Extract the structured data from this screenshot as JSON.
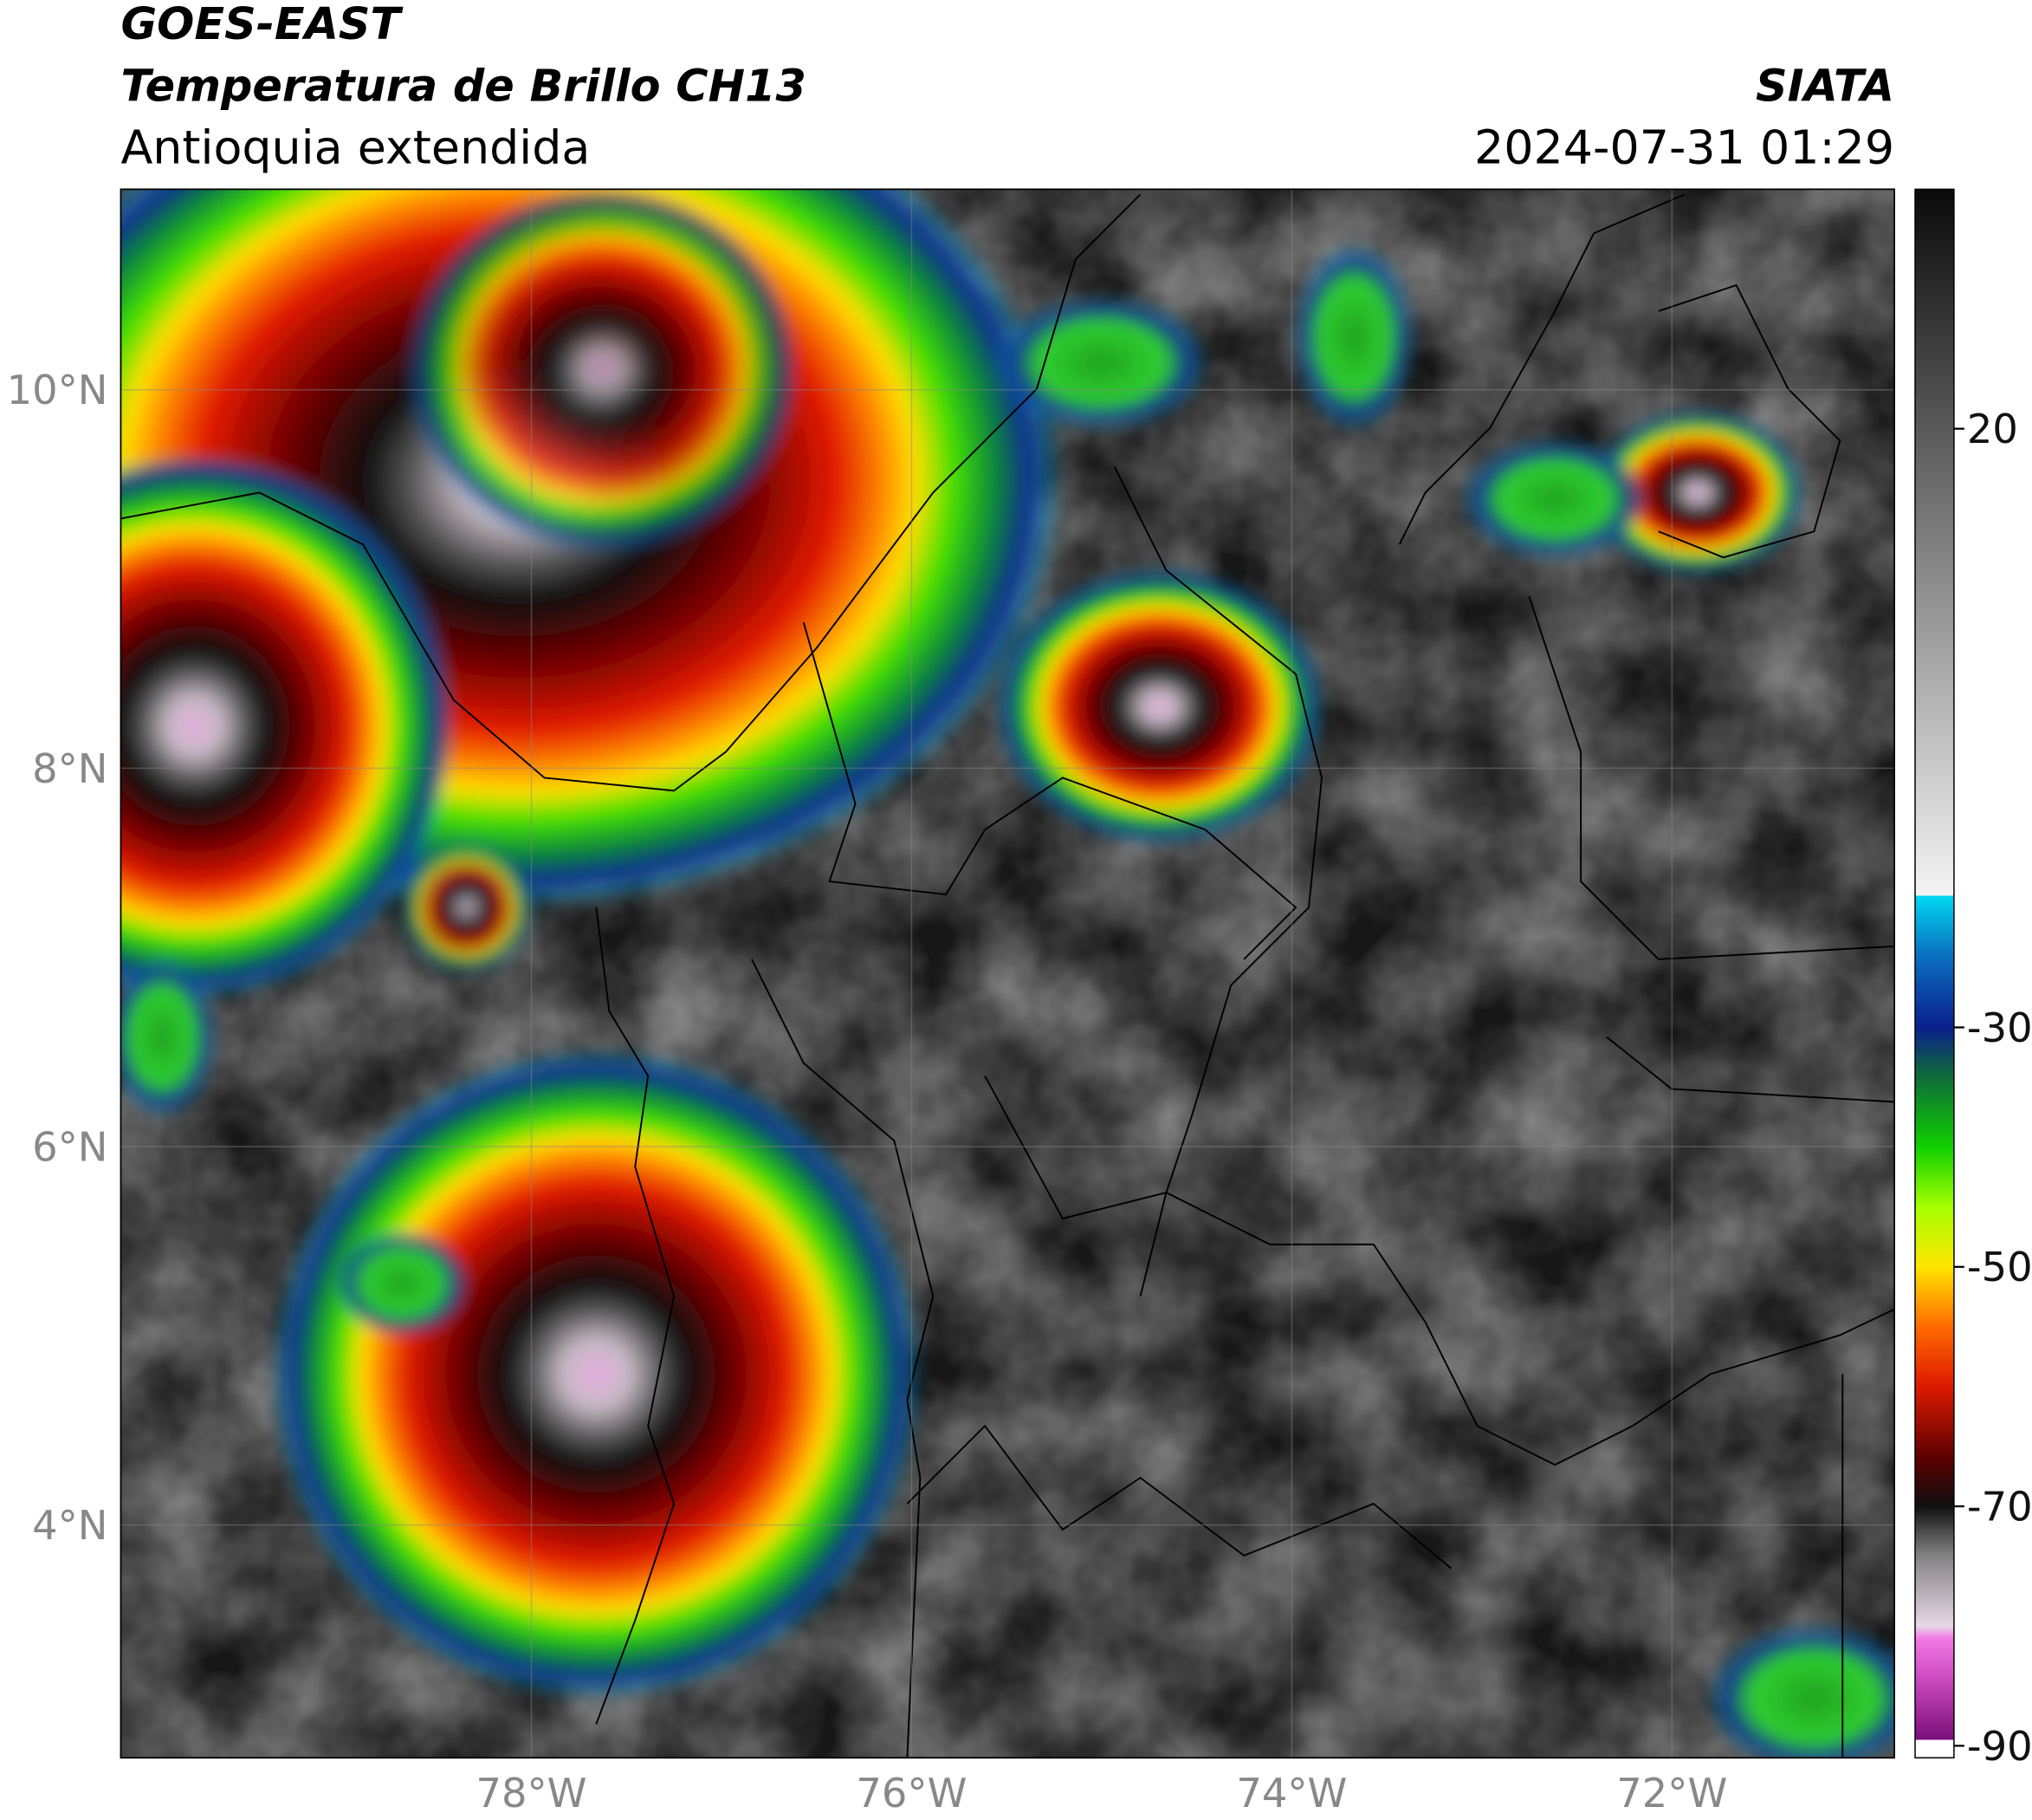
{
  "header": {
    "title": "GOES-EAST",
    "subtitle": "Temperatura de Brillo CH13",
    "region": "Antioquia extendida",
    "source": "SIATA",
    "datetime": "2024-07-31 01:29"
  },
  "map": {
    "lonlim": [
      -80.16,
      -70.83
    ],
    "latlim": [
      2.77,
      11.06
    ],
    "lonticks": [
      {
        "value": -78,
        "label": "78°W"
      },
      {
        "value": -76,
        "label": "76°W"
      },
      {
        "value": -74,
        "label": "74°W"
      },
      {
        "value": -72,
        "label": "72°W"
      }
    ],
    "latticks": [
      {
        "value": 10,
        "label": "10°N"
      },
      {
        "value": 8,
        "label": "8°N"
      },
      {
        "value": 6,
        "label": "6°N"
      },
      {
        "value": 4,
        "label": "4°N"
      }
    ],
    "grid": true
  },
  "colorbar": {
    "lim": [
      -91,
      40
    ],
    "ticks": [
      20,
      -30,
      -50,
      -70,
      -90
    ],
    "colormap": [
      [
        -91,
        "#ffffff"
      ],
      [
        -89.5,
        "#ffffff"
      ],
      [
        -89.5,
        "#7a0f7a"
      ],
      [
        -84,
        "#d24fc4"
      ],
      [
        -81,
        "#f07ae6"
      ],
      [
        -80,
        "#e8d8e6"
      ],
      [
        -74,
        "#808080"
      ],
      [
        -70,
        "#101010"
      ],
      [
        -66,
        "#5a0000"
      ],
      [
        -60,
        "#dd1a00"
      ],
      [
        -55,
        "#ff6a00"
      ],
      [
        -50,
        "#ffe600"
      ],
      [
        -45,
        "#a6ff00"
      ],
      [
        -40,
        "#10d000"
      ],
      [
        -34,
        "#0e6a3a"
      ],
      [
        -30,
        "#0a1f8c"
      ],
      [
        -24,
        "#0a70c0"
      ],
      [
        -19,
        "#00d8f0"
      ],
      [
        -19,
        "#f4f4f4"
      ],
      [
        40,
        "#0a0a0a"
      ]
    ]
  }
}
